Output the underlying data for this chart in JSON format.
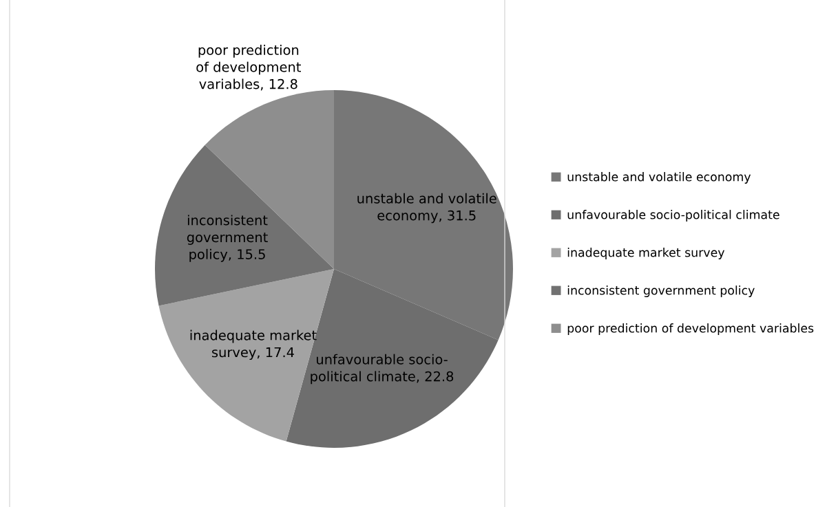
{
  "chart_data": {
    "type": "pie",
    "categories": [
      "unstable and volatile economy",
      "unfavourable socio-political climate",
      "inadequate market survey",
      "inconsistent government policy",
      "poor prediction of development variables"
    ],
    "values": [
      31.5,
      22.8,
      17.4,
      15.5,
      12.8
    ],
    "colors": [
      "#777777",
      "#6e6e6e",
      "#a3a3a3",
      "#717171",
      "#8e8e8e"
    ],
    "value_labels": [
      "unstable and volatile\neconomy, 31.5",
      "unfavourable socio-\npolitical climate, 22.8",
      "inadequate market\nsurvey, 17.4",
      "inconsistent\ngovernment\npolicy, 15.5",
      "poor prediction\nof development\nvariables, 12.8"
    ],
    "legend": "right"
  }
}
